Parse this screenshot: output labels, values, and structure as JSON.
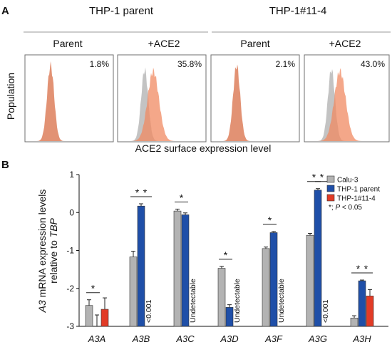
{
  "panel_a": {
    "letter": "A",
    "groups": [
      {
        "title": "THP-1 parent",
        "panels": [
          {
            "subtitle": "Parent",
            "percent": "1.8%",
            "type": "single"
          },
          {
            "subtitle": "+ACE2",
            "percent": "35.8%",
            "type": "overlay"
          }
        ]
      },
      {
        "title": "THP-1#11-4",
        "panels": [
          {
            "subtitle": "Parent",
            "percent": "2.1%",
            "type": "single"
          },
          {
            "subtitle": "+ACE2",
            "percent": "43.0%",
            "type": "overlay"
          }
        ]
      }
    ],
    "y_label": "Population",
    "x_label": "ACE2 surface expression level"
  },
  "chart_data": {
    "type": "bar",
    "panel_letter": "B",
    "ylabel": {
      "gene": "A3",
      "line1_rest": " mRNA expression levels",
      "line2": "relative to ",
      "line2_italic": "TBP"
    },
    "ylim": [
      -3,
      1
    ],
    "yticks": [
      "1",
      "0",
      "-1",
      "-2",
      "-3"
    ],
    "categories": [
      "A3A",
      "A3B",
      "A3C",
      "A3D",
      "A3F",
      "A3G",
      "A3H"
    ],
    "series": [
      {
        "name": "Calu-3",
        "color": "#b3b3b3",
        "values": [
          -2.45,
          -1.17,
          0.04,
          -1.47,
          -0.95,
          -0.6,
          -2.78
        ],
        "errors": [
          0.15,
          0.15,
          0.05,
          0.05,
          0.04,
          0.05,
          0.06
        ]
      },
      {
        "name": "THP-1 parent",
        "color": "#1f4fa8",
        "values": [
          null,
          0.17,
          -0.06,
          -2.5,
          -0.53,
          0.59,
          -1.8
        ],
        "errors": [
          null,
          0.06,
          0.05,
          0.07,
          0.03,
          0.04,
          0.02
        ]
      },
      {
        "name": "THP-1#11-4",
        "color": "#e23b26",
        "values": [
          -2.55,
          null,
          null,
          null,
          null,
          null,
          -2.2
        ],
        "errors": [
          0.3,
          null,
          null,
          null,
          null,
          null,
          0.17
        ]
      }
    ],
    "a3a_thp1_parent_error_only": {
      "low": -3.0,
      "high": -2.7
    },
    "value_notes": [
      {
        "category": "A3B",
        "text": "<0.001"
      },
      {
        "category": "A3C",
        "text": "Undetectable"
      },
      {
        "category": "A3D",
        "text": "Undetectable"
      },
      {
        "category": "A3F",
        "text": "Undetectable"
      },
      {
        "category": "A3G",
        "text": "<0.001"
      }
    ],
    "significance": [
      {
        "category": "A3A",
        "from_series": 0,
        "to_series": 1,
        "label": "*"
      },
      {
        "category": "A3B",
        "from_series": 0,
        "to_series": 1,
        "label": "*"
      },
      {
        "category": "A3B",
        "from_series": 1,
        "to_series": 2,
        "label": "*"
      },
      {
        "category": "A3C",
        "from_series": 0,
        "to_series": 1,
        "label": "*"
      },
      {
        "category": "A3D",
        "from_series": 0,
        "to_series": 1,
        "label": "*"
      },
      {
        "category": "A3F",
        "from_series": 0,
        "to_series": 1,
        "label": "*"
      },
      {
        "category": "A3G",
        "from_series": 0,
        "to_series": 1,
        "label": "*"
      },
      {
        "category": "A3G",
        "from_series": 1,
        "to_series": 2,
        "label": "*"
      },
      {
        "category": "A3H",
        "from_series": 0,
        "to_series": 1,
        "label": "*"
      },
      {
        "category": "A3H",
        "from_series": 1,
        "to_series": 2,
        "label": "*"
      }
    ],
    "legend_note": "*; P < 0.05",
    "legend_note_parts": {
      "pre": "*; ",
      "italic": "P",
      "post": " < 0.05"
    },
    "legend_position": "top-right"
  }
}
